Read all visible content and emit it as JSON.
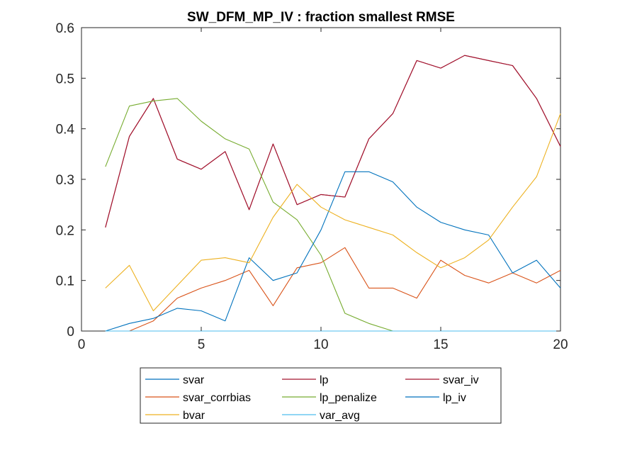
{
  "chart_data": {
    "type": "line",
    "title": "SW_DFM_MP_IV : fraction smallest RMSE",
    "xlabel": "",
    "ylabel": "",
    "xlim": [
      0,
      20
    ],
    "ylim": [
      0,
      0.6
    ],
    "xticks": [
      0,
      5,
      10,
      15,
      20
    ],
    "xtick_labels": [
      "0",
      "5",
      "10",
      "15",
      "20"
    ],
    "yticks": [
      0,
      0.1,
      0.2,
      0.3,
      0.4,
      0.5,
      0.6
    ],
    "ytick_labels": [
      "0",
      "0.1",
      "0.2",
      "0.3",
      "0.4",
      "0.5",
      "0.6"
    ],
    "grid": false,
    "legend_position": "bottom-outside",
    "legend_columns": 3,
    "x": [
      1,
      2,
      3,
      4,
      5,
      6,
      7,
      8,
      9,
      10,
      11,
      12,
      13,
      14,
      15,
      16,
      17,
      18,
      19,
      20
    ],
    "series": [
      {
        "name": "svar",
        "color": "#0072BD",
        "values": [
          0,
          0,
          0,
          0,
          0,
          0,
          0,
          0,
          0,
          0,
          0,
          0,
          0,
          0,
          0,
          0,
          0,
          0,
          0,
          0
        ]
      },
      {
        "name": "lp",
        "color": "#A2142F",
        "values": [
          0.205,
          0.385,
          0.46,
          0.34,
          0.32,
          0.355,
          0.24,
          0.37,
          0.25,
          0.27,
          0.265,
          0.38,
          0.43,
          0.535,
          0.52,
          0.545,
          0.535,
          0.525,
          0.46,
          0.365
        ]
      },
      {
        "name": "svar_iv",
        "color": "#A2142F",
        "values": [
          0.205,
          0.385,
          0.46,
          0.34,
          0.32,
          0.355,
          0.24,
          0.37,
          0.25,
          0.27,
          0.265,
          0.38,
          0.43,
          0.535,
          0.52,
          0.545,
          0.535,
          0.525,
          0.46,
          0.365
        ]
      },
      {
        "name": "svar_corrbias",
        "color": "#D95319",
        "values": [
          0,
          0,
          0.02,
          0.065,
          0.085,
          0.1,
          0.12,
          0.05,
          0.125,
          0.135,
          0.165,
          0.085,
          0.085,
          0.065,
          0.14,
          0.11,
          0.095,
          0.115,
          0.095,
          0.12
        ]
      },
      {
        "name": "lp_penalize",
        "color": "#77AC30",
        "values": [
          0.325,
          0.445,
          0.455,
          0.46,
          0.415,
          0.38,
          0.36,
          0.255,
          0.22,
          0.15,
          0.035,
          0.015,
          0,
          0,
          0,
          0,
          0,
          0,
          0,
          0
        ]
      },
      {
        "name": "lp_iv",
        "color": "#0072BD",
        "values": [
          0,
          0.015,
          0.025,
          0.045,
          0.04,
          0.02,
          0.145,
          0.1,
          0.115,
          0.2,
          0.315,
          0.315,
          0.295,
          0.245,
          0.215,
          0.2,
          0.19,
          0.115,
          0.14,
          0.085
        ]
      },
      {
        "name": "bvar",
        "color": "#EDB120",
        "values": [
          0.085,
          0.13,
          0.04,
          0.09,
          0.14,
          0.145,
          0.135,
          0.225,
          0.29,
          0.245,
          0.22,
          0.205,
          0.19,
          0.155,
          0.125,
          0.145,
          0.18,
          0.245,
          0.305,
          0.43
        ]
      },
      {
        "name": "var_avg",
        "color": "#4DBEEE",
        "values": [
          0,
          0,
          0,
          0,
          0,
          0,
          0,
          0,
          0,
          0,
          0,
          0,
          0,
          0,
          0,
          0,
          0,
          0,
          0,
          0
        ]
      }
    ]
  }
}
